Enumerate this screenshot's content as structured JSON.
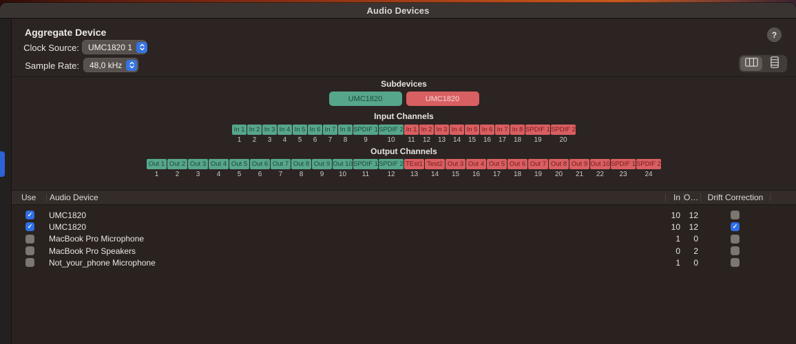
{
  "window": {
    "title": "Audio Devices"
  },
  "controls": {
    "device_name": "Aggregate Device",
    "clock_source_label": "Clock Source:",
    "clock_source_value": "UMC1820 1",
    "sample_rate_label": "Sample Rate:",
    "sample_rate_value": "48,0 kHz",
    "help_label": "?"
  },
  "subdevices": {
    "title": "Subdevices",
    "items": [
      {
        "label": "UMC1820",
        "color": "green"
      },
      {
        "label": "UMC1820",
        "color": "red"
      }
    ]
  },
  "input_channels": {
    "title": "Input Channels",
    "cells": [
      {
        "label": "In 1",
        "n": "1",
        "color": "green"
      },
      {
        "label": "In 2",
        "n": "2",
        "color": "green"
      },
      {
        "label": "In 3",
        "n": "3",
        "color": "green"
      },
      {
        "label": "In 4",
        "n": "4",
        "color": "green"
      },
      {
        "label": "In 5",
        "n": "5",
        "color": "green"
      },
      {
        "label": "In 6",
        "n": "6",
        "color": "green"
      },
      {
        "label": "In 7",
        "n": "7",
        "color": "green"
      },
      {
        "label": "In 8",
        "n": "8",
        "color": "green"
      },
      {
        "label": "SPDIF 1",
        "n": "9",
        "color": "green",
        "wide": true
      },
      {
        "label": "SPDIF 2",
        "n": "10",
        "color": "green",
        "wide": true
      },
      {
        "label": "In 1",
        "n": "11",
        "color": "red"
      },
      {
        "label": "In 2",
        "n": "12",
        "color": "red"
      },
      {
        "label": "In 3",
        "n": "13",
        "color": "red"
      },
      {
        "label": "In 4",
        "n": "14",
        "color": "red"
      },
      {
        "label": "In 5",
        "n": "15",
        "color": "red"
      },
      {
        "label": "In 6",
        "n": "16",
        "color": "red"
      },
      {
        "label": "In 7",
        "n": "17",
        "color": "red"
      },
      {
        "label": "In 8",
        "n": "18",
        "color": "red"
      },
      {
        "label": "SPDIF 1",
        "n": "19",
        "color": "red",
        "wide": true
      },
      {
        "label": "SPDIF 2",
        "n": "20",
        "color": "red",
        "wide": true
      }
    ]
  },
  "output_channels": {
    "title": "Output Channels",
    "cells": [
      {
        "label": "Out 1",
        "n": "1",
        "color": "green"
      },
      {
        "label": "Out 2",
        "n": "2",
        "color": "green"
      },
      {
        "label": "Out 3",
        "n": "3",
        "color": "green"
      },
      {
        "label": "Out 4",
        "n": "4",
        "color": "green"
      },
      {
        "label": "Out 5",
        "n": "5",
        "color": "green"
      },
      {
        "label": "Out 6",
        "n": "6",
        "color": "green"
      },
      {
        "label": "Out 7",
        "n": "7",
        "color": "green"
      },
      {
        "label": "Out 8",
        "n": "8",
        "color": "green"
      },
      {
        "label": "Out 9",
        "n": "9",
        "color": "green"
      },
      {
        "label": "Out 10",
        "n": "10",
        "color": "green"
      },
      {
        "label": "SPDIF 1",
        "n": "11",
        "color": "green",
        "wide": true
      },
      {
        "label": "SPDIF 2",
        "n": "12",
        "color": "green",
        "wide": true
      },
      {
        "label": "TEst1",
        "n": "13",
        "color": "red"
      },
      {
        "label": "Test2",
        "n": "14",
        "color": "red"
      },
      {
        "label": "Out 3",
        "n": "15",
        "color": "red"
      },
      {
        "label": "Out 4",
        "n": "16",
        "color": "red"
      },
      {
        "label": "Out 5",
        "n": "17",
        "color": "red"
      },
      {
        "label": "Out 6",
        "n": "18",
        "color": "red"
      },
      {
        "label": "Out 7",
        "n": "19",
        "color": "red"
      },
      {
        "label": "Out 8",
        "n": "20",
        "color": "red"
      },
      {
        "label": "Out 9",
        "n": "21",
        "color": "red"
      },
      {
        "label": "Out 10",
        "n": "22",
        "color": "red"
      },
      {
        "label": "SPDIF 1",
        "n": "23",
        "color": "red",
        "wide": true
      },
      {
        "label": "SPDIF 2",
        "n": "24",
        "color": "red",
        "wide": true
      }
    ]
  },
  "device_table": {
    "headers": {
      "use": "Use",
      "device": "Audio Device",
      "in": "In",
      "out": "O…",
      "drift": "Drift Correction"
    },
    "rows": [
      {
        "use": true,
        "device": "UMC1820",
        "in": "10",
        "out": "12",
        "drift": false
      },
      {
        "use": true,
        "device": "UMC1820",
        "in": "10",
        "out": "12",
        "drift": true
      },
      {
        "use": false,
        "device": "MacBook Pro Microphone",
        "in": "1",
        "out": "0",
        "drift": false
      },
      {
        "use": false,
        "device": "MacBook Pro Speakers",
        "in": "0",
        "out": "2",
        "drift": false
      },
      {
        "use": false,
        "device": "Not_your_phone Microphone",
        "in": "1",
        "out": "0",
        "drift": false
      }
    ]
  },
  "colors": {
    "subdevice_green": "#56a68c",
    "subdevice_red": "#d85f62",
    "accent_blue": "#3574e0",
    "checkbox_blue": "#3070e8",
    "sidebar_selection": "#2e62d8"
  }
}
